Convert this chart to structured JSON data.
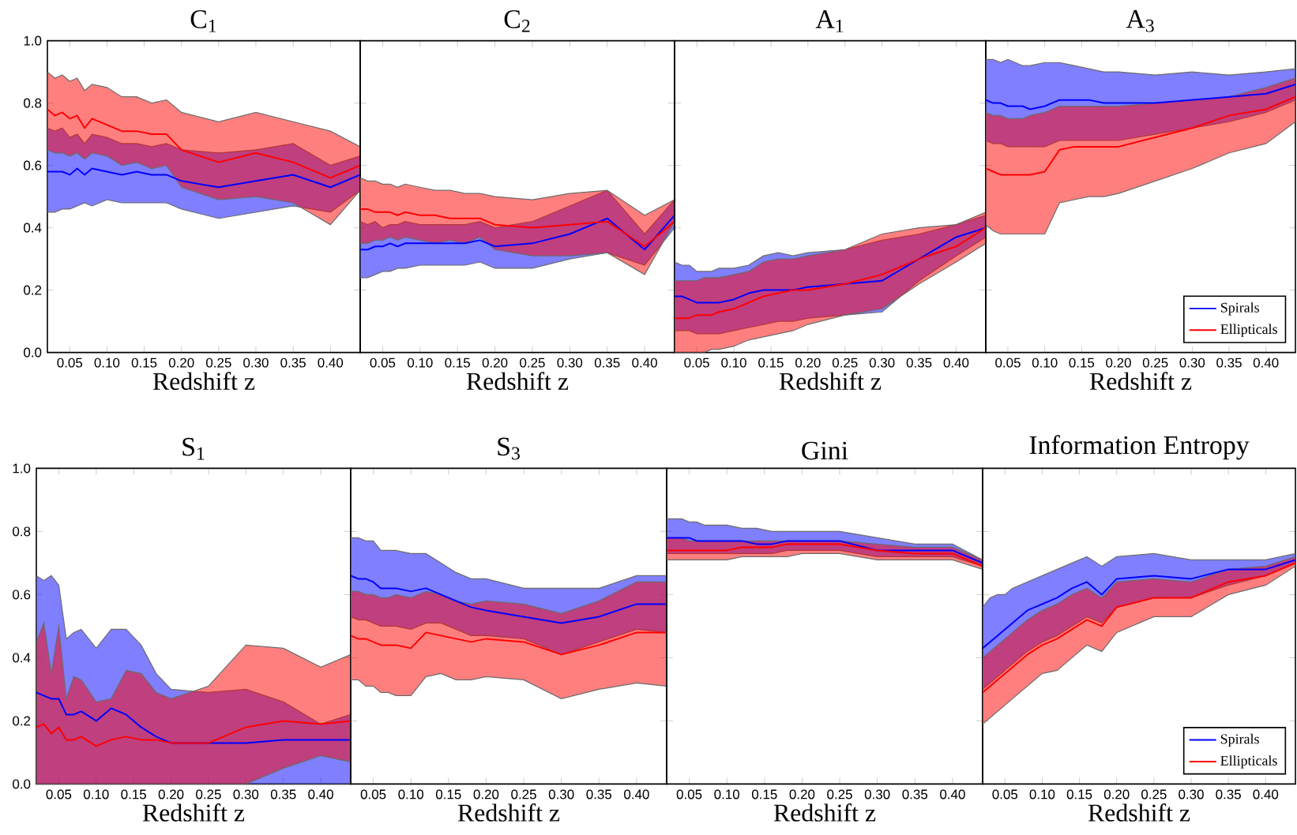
{
  "chart_data": [
    {
      "type": "line",
      "title": "C$_{1}$",
      "xlabel": "Redshift z",
      "x": [
        0.02,
        0.03,
        0.04,
        0.05,
        0.06,
        0.07,
        0.08,
        0.1,
        0.12,
        0.14,
        0.16,
        0.18,
        0.2,
        0.25,
        0.3,
        0.35,
        0.4,
        0.44
      ],
      "xlim": [
        0.02,
        0.44
      ],
      "xticks": [
        {
          "value": 0.05,
          "label": "0.05"
        },
        {
          "value": 0.1,
          "label": "0.10"
        },
        {
          "value": 0.15,
          "label": "0.15"
        },
        {
          "value": 0.2,
          "label": "0.20"
        },
        {
          "value": 0.25,
          "label": "0.25"
        },
        {
          "value": 0.3,
          "label": "0.30"
        },
        {
          "value": 0.35,
          "label": "0.35"
        },
        {
          "value": 0.4,
          "label": "0.40"
        }
      ],
      "ylim": [
        0,
        1
      ],
      "yticks": [
        {
          "value": 0,
          "label": "0.0"
        },
        {
          "value": 0.2,
          "label": "0.2"
        },
        {
          "value": 0.4,
          "label": "0.4"
        },
        {
          "value": 0.6,
          "label": "0.6"
        },
        {
          "value": 0.8,
          "label": "0.8"
        },
        {
          "value": 1,
          "label": "1.0"
        }
      ],
      "series": [
        {
          "color": "#0000ff",
          "values": [
            0.58,
            0.58,
            0.58,
            0.57,
            0.59,
            0.57,
            0.59,
            0.58,
            0.57,
            0.58,
            0.57,
            0.57,
            0.55,
            0.53,
            0.55,
            0.57,
            0.53,
            0.57
          ],
          "lower": [
            0.45,
            0.45,
            0.46,
            0.46,
            0.47,
            0.48,
            0.47,
            0.49,
            0.48,
            0.48,
            0.48,
            0.48,
            0.46,
            0.43,
            0.45,
            0.47,
            0.45,
            0.52
          ],
          "upper": [
            0.72,
            0.71,
            0.72,
            0.69,
            0.7,
            0.67,
            0.7,
            0.69,
            0.67,
            0.67,
            0.66,
            0.67,
            0.65,
            0.64,
            0.65,
            0.67,
            0.6,
            0.63
          ]
        },
        {
          "color": "#ff0000",
          "values": [
            0.78,
            0.76,
            0.77,
            0.75,
            0.76,
            0.72,
            0.75,
            0.73,
            0.71,
            0.71,
            0.7,
            0.7,
            0.65,
            0.61,
            0.64,
            0.61,
            0.56,
            0.6
          ],
          "lower": [
            0.65,
            0.64,
            0.64,
            0.63,
            0.64,
            0.62,
            0.64,
            0.63,
            0.6,
            0.61,
            0.59,
            0.6,
            0.53,
            0.49,
            0.5,
            0.48,
            0.41,
            0.52
          ],
          "upper": [
            0.9,
            0.88,
            0.89,
            0.87,
            0.88,
            0.84,
            0.86,
            0.85,
            0.82,
            0.82,
            0.8,
            0.81,
            0.77,
            0.74,
            0.77,
            0.74,
            0.71,
            0.66
          ]
        }
      ]
    },
    {
      "type": "line",
      "title": "C$_{2}$",
      "xlabel": "Redshift z",
      "x": [
        0.02,
        0.03,
        0.04,
        0.05,
        0.06,
        0.07,
        0.08,
        0.1,
        0.12,
        0.14,
        0.16,
        0.18,
        0.2,
        0.25,
        0.3,
        0.35,
        0.4,
        0.44
      ],
      "xlim": [
        0.02,
        0.44
      ],
      "xticks": [
        {
          "value": 0.05,
          "label": "0.05"
        },
        {
          "value": 0.1,
          "label": "0.10"
        },
        {
          "value": 0.15,
          "label": "0.15"
        },
        {
          "value": 0.2,
          "label": "0.20"
        },
        {
          "value": 0.25,
          "label": "0.25"
        },
        {
          "value": 0.3,
          "label": "0.30"
        },
        {
          "value": 0.35,
          "label": "0.35"
        },
        {
          "value": 0.4,
          "label": "0.40"
        }
      ],
      "ylim": [
        0,
        1
      ],
      "yticks": [
        {
          "value": 0,
          "label": null
        },
        {
          "value": 0.2,
          "label": null
        },
        {
          "value": 0.4,
          "label": null
        },
        {
          "value": 0.6,
          "label": null
        },
        {
          "value": 0.8,
          "label": null
        },
        {
          "value": 1,
          "label": null
        }
      ],
      "tick_labels": "x",
      "series": [
        {
          "color": "#0000ff",
          "values": [
            0.33,
            0.33,
            0.34,
            0.34,
            0.35,
            0.34,
            0.35,
            0.35,
            0.35,
            0.35,
            0.35,
            0.36,
            0.34,
            0.35,
            0.38,
            0.43,
            0.33,
            0.44
          ],
          "lower": [
            0.24,
            0.24,
            0.25,
            0.26,
            0.26,
            0.27,
            0.27,
            0.28,
            0.28,
            0.28,
            0.28,
            0.29,
            0.27,
            0.27,
            0.3,
            0.32,
            0.28,
            0.4
          ],
          "upper": [
            0.42,
            0.41,
            0.42,
            0.4,
            0.41,
            0.41,
            0.42,
            0.41,
            0.41,
            0.41,
            0.41,
            0.42,
            0.4,
            0.42,
            0.47,
            0.52,
            0.38,
            0.49
          ]
        },
        {
          "color": "#ff0000",
          "values": [
            0.46,
            0.46,
            0.45,
            0.45,
            0.45,
            0.44,
            0.45,
            0.44,
            0.44,
            0.43,
            0.43,
            0.43,
            0.41,
            0.4,
            0.41,
            0.42,
            0.34,
            0.42
          ],
          "lower": [
            0.35,
            0.35,
            0.36,
            0.36,
            0.37,
            0.36,
            0.37,
            0.36,
            0.35,
            0.36,
            0.35,
            0.37,
            0.33,
            0.31,
            0.31,
            0.32,
            0.25,
            0.42
          ],
          "upper": [
            0.56,
            0.55,
            0.55,
            0.54,
            0.54,
            0.53,
            0.54,
            0.53,
            0.52,
            0.52,
            0.51,
            0.51,
            0.5,
            0.49,
            0.51,
            0.52,
            0.44,
            0.49
          ]
        }
      ]
    },
    {
      "type": "line",
      "title": "A$_{1}$",
      "xlabel": "Redshift z",
      "x": [
        0.02,
        0.03,
        0.04,
        0.05,
        0.06,
        0.07,
        0.08,
        0.1,
        0.12,
        0.14,
        0.16,
        0.18,
        0.2,
        0.25,
        0.3,
        0.35,
        0.4,
        0.44
      ],
      "xlim": [
        0.02,
        0.44
      ],
      "xticks": [
        {
          "value": 0.05,
          "label": "0.05"
        },
        {
          "value": 0.1,
          "label": "0.10"
        },
        {
          "value": 0.15,
          "label": "0.15"
        },
        {
          "value": 0.2,
          "label": "0.20"
        },
        {
          "value": 0.25,
          "label": "0.25"
        },
        {
          "value": 0.3,
          "label": "0.30"
        },
        {
          "value": 0.35,
          "label": "0.35"
        },
        {
          "value": 0.4,
          "label": "0.40"
        }
      ],
      "ylim": [
        0,
        1
      ],
      "yticks": [
        {
          "value": 0,
          "label": null
        },
        {
          "value": 0.2,
          "label": null
        },
        {
          "value": 0.4,
          "label": null
        },
        {
          "value": 0.6,
          "label": null
        },
        {
          "value": 0.8,
          "label": null
        },
        {
          "value": 1,
          "label": null
        }
      ],
      "tick_labels": "x",
      "series": [
        {
          "color": "#0000ff",
          "values": [
            0.18,
            0.18,
            0.17,
            0.16,
            0.16,
            0.16,
            0.16,
            0.17,
            0.19,
            0.2,
            0.2,
            0.2,
            0.21,
            0.22,
            0.23,
            0.3,
            0.37,
            0.4
          ],
          "lower": [
            0.07,
            0.07,
            0.07,
            0.06,
            0.06,
            0.06,
            0.06,
            0.07,
            0.08,
            0.09,
            0.1,
            0.1,
            0.11,
            0.12,
            0.13,
            0.23,
            0.31,
            0.37
          ],
          "upper": [
            0.29,
            0.28,
            0.28,
            0.26,
            0.26,
            0.26,
            0.27,
            0.27,
            0.28,
            0.31,
            0.32,
            0.31,
            0.32,
            0.33,
            0.36,
            0.38,
            0.41,
            0.44
          ]
        },
        {
          "color": "#ff0000",
          "values": [
            0.11,
            0.11,
            0.11,
            0.12,
            0.12,
            0.12,
            0.13,
            0.14,
            0.16,
            0.18,
            0.19,
            0.2,
            0.2,
            0.22,
            0.25,
            0.3,
            0.34,
            0.4
          ],
          "lower": [
            0,
            0,
            0,
            0,
            0,
            0.01,
            0.01,
            0.02,
            0.04,
            0.05,
            0.06,
            0.07,
            0.09,
            0.12,
            0.14,
            0.22,
            0.29,
            0.35
          ],
          "upper": [
            0.23,
            0.23,
            0.23,
            0.23,
            0.24,
            0.24,
            0.24,
            0.25,
            0.26,
            0.29,
            0.3,
            0.3,
            0.31,
            0.33,
            0.38,
            0.4,
            0.41,
            0.45
          ]
        }
      ]
    },
    {
      "type": "line",
      "title": "A$_{3}$",
      "xlabel": "Redshift z",
      "x": [
        0.02,
        0.03,
        0.04,
        0.05,
        0.06,
        0.07,
        0.08,
        0.1,
        0.12,
        0.14,
        0.16,
        0.18,
        0.2,
        0.25,
        0.3,
        0.35,
        0.4,
        0.44
      ],
      "xlim": [
        0.02,
        0.44
      ],
      "xticks": [
        {
          "value": 0.05,
          "label": "0.05"
        },
        {
          "value": 0.1,
          "label": "0.10"
        },
        {
          "value": 0.15,
          "label": "0.15"
        },
        {
          "value": 0.2,
          "label": "0.20"
        },
        {
          "value": 0.25,
          "label": "0.25"
        },
        {
          "value": 0.3,
          "label": "0.30"
        },
        {
          "value": 0.35,
          "label": "0.35"
        },
        {
          "value": 0.4,
          "label": "0.40"
        }
      ],
      "ylim": [
        0,
        1
      ],
      "yticks": [
        {
          "value": 0,
          "label": null
        },
        {
          "value": 0.2,
          "label": null
        },
        {
          "value": 0.4,
          "label": null
        },
        {
          "value": 0.6,
          "label": null
        },
        {
          "value": 0.8,
          "label": null
        },
        {
          "value": 1,
          "label": null
        }
      ],
      "tick_labels": "x",
      "legend": "bottom right",
      "series": [
        {
          "name": "Spirals",
          "color": "#0000ff",
          "values": [
            0.81,
            0.8,
            0.8,
            0.79,
            0.79,
            0.79,
            0.78,
            0.79,
            0.81,
            0.81,
            0.81,
            0.8,
            0.8,
            0.8,
            0.81,
            0.82,
            0.83,
            0.86
          ],
          "lower": [
            0.68,
            0.67,
            0.67,
            0.66,
            0.66,
            0.66,
            0.66,
            0.66,
            0.68,
            0.68,
            0.68,
            0.68,
            0.68,
            0.7,
            0.72,
            0.74,
            0.77,
            0.81
          ],
          "upper": [
            0.94,
            0.94,
            0.93,
            0.94,
            0.93,
            0.92,
            0.92,
            0.93,
            0.93,
            0.92,
            0.91,
            0.9,
            0.9,
            0.89,
            0.9,
            0.89,
            0.9,
            0.91
          ]
        },
        {
          "name": "Ellipticals",
          "color": "#ff0000",
          "values": [
            0.59,
            0.58,
            0.57,
            0.57,
            0.57,
            0.57,
            0.57,
            0.58,
            0.65,
            0.66,
            0.66,
            0.66,
            0.66,
            0.69,
            0.72,
            0.76,
            0.78,
            0.82
          ],
          "lower": [
            0.41,
            0.39,
            0.38,
            0.38,
            0.38,
            0.38,
            0.38,
            0.38,
            0.48,
            0.49,
            0.5,
            0.5,
            0.51,
            0.55,
            0.59,
            0.64,
            0.67,
            0.74
          ],
          "upper": [
            0.77,
            0.76,
            0.76,
            0.75,
            0.75,
            0.75,
            0.76,
            0.77,
            0.79,
            0.79,
            0.79,
            0.79,
            0.79,
            0.8,
            0.81,
            0.82,
            0.85,
            0.88
          ]
        }
      ]
    },
    {
      "type": "line",
      "title": "S$_{1}$",
      "xlabel": "Redshift z",
      "x": [
        0.02,
        0.03,
        0.04,
        0.05,
        0.06,
        0.07,
        0.08,
        0.1,
        0.12,
        0.14,
        0.16,
        0.18,
        0.2,
        0.25,
        0.3,
        0.35,
        0.4,
        0.44
      ],
      "xlim": [
        0.02,
        0.44
      ],
      "xticks": [
        {
          "value": 0.05,
          "label": "0.05"
        },
        {
          "value": 0.1,
          "label": "0.10"
        },
        {
          "value": 0.15,
          "label": "0.15"
        },
        {
          "value": 0.2,
          "label": "0.20"
        },
        {
          "value": 0.25,
          "label": "0.25"
        },
        {
          "value": 0.3,
          "label": "0.30"
        },
        {
          "value": 0.35,
          "label": "0.35"
        },
        {
          "value": 0.4,
          "label": "0.40"
        }
      ],
      "ylim": [
        0,
        1
      ],
      "yticks": [
        {
          "value": 0,
          "label": "0.0"
        },
        {
          "value": 0.2,
          "label": "0.2"
        },
        {
          "value": 0.4,
          "label": "0.4"
        },
        {
          "value": 0.6,
          "label": "0.6"
        },
        {
          "value": 0.8,
          "label": "0.8"
        },
        {
          "value": 1,
          "label": "1.0"
        }
      ],
      "series": [
        {
          "color": "#0000ff",
          "values": [
            0.29,
            0.28,
            0.27,
            0.27,
            0.22,
            0.22,
            0.23,
            0.2,
            0.24,
            0.22,
            0.18,
            0.15,
            0.13,
            0.13,
            0.13,
            0.14,
            0.14,
            0.14
          ],
          "lower": [
            0,
            0,
            0,
            0,
            0,
            0,
            0,
            0,
            0,
            0,
            0,
            0,
            0,
            0,
            0,
            0,
            0,
            0
          ],
          "upper": [
            0.66,
            0.645,
            0.66,
            0.63,
            0.46,
            0.48,
            0.49,
            0.43,
            0.49,
            0.49,
            0.44,
            0.35,
            0.3,
            0.29,
            0.3,
            0.26,
            0.19,
            0.22
          ]
        },
        {
          "color": "#ff0000",
          "values": [
            0.18,
            0.19,
            0.16,
            0.18,
            0.14,
            0.14,
            0.15,
            0.12,
            0.14,
            0.15,
            0.14,
            0.14,
            0.13,
            0.13,
            0.18,
            0.2,
            0.19,
            0.2
          ],
          "lower": [
            0,
            0,
            0,
            0,
            0,
            0,
            0,
            0,
            0,
            0,
            0,
            0,
            0,
            0,
            0,
            0.05,
            0.09,
            0.07
          ],
          "upper": [
            0.45,
            0.51,
            0.35,
            0.5,
            0.27,
            0.34,
            0.33,
            0.26,
            0.27,
            0.36,
            0.35,
            0.29,
            0.27,
            0.31,
            0.44,
            0.43,
            0.37,
            0.41
          ]
        }
      ]
    },
    {
      "type": "line",
      "title": "S$_{3}$",
      "xlabel": "Redshift z",
      "x": [
        0.02,
        0.03,
        0.04,
        0.05,
        0.06,
        0.07,
        0.08,
        0.1,
        0.12,
        0.14,
        0.16,
        0.18,
        0.2,
        0.25,
        0.3,
        0.35,
        0.4,
        0.44
      ],
      "xlim": [
        0.02,
        0.44
      ],
      "xticks": [
        {
          "value": 0.05,
          "label": "0.05"
        },
        {
          "value": 0.1,
          "label": "0.10"
        },
        {
          "value": 0.15,
          "label": "0.15"
        },
        {
          "value": 0.2,
          "label": "0.20"
        },
        {
          "value": 0.25,
          "label": "0.25"
        },
        {
          "value": 0.3,
          "label": "0.30"
        },
        {
          "value": 0.35,
          "label": "0.35"
        },
        {
          "value": 0.4,
          "label": "0.40"
        }
      ],
      "ylim": [
        0,
        1
      ],
      "yticks": [
        {
          "value": 0,
          "label": null
        },
        {
          "value": 0.2,
          "label": null
        },
        {
          "value": 0.4,
          "label": null
        },
        {
          "value": 0.6,
          "label": null
        },
        {
          "value": 0.8,
          "label": null
        },
        {
          "value": 1,
          "label": null
        }
      ],
      "tick_labels": "x",
      "series": [
        {
          "color": "#0000ff",
          "values": [
            0.66,
            0.65,
            0.65,
            0.64,
            0.62,
            0.62,
            0.62,
            0.61,
            0.62,
            0.6,
            0.58,
            0.56,
            0.55,
            0.53,
            0.51,
            0.53,
            0.57,
            0.57
          ],
          "lower": [
            0.53,
            0.52,
            0.52,
            0.51,
            0.5,
            0.5,
            0.5,
            0.49,
            0.51,
            0.51,
            0.49,
            0.47,
            0.47,
            0.46,
            0.41,
            0.45,
            0.49,
            0.48
          ],
          "upper": [
            0.78,
            0.78,
            0.77,
            0.77,
            0.74,
            0.74,
            0.74,
            0.73,
            0.73,
            0.7,
            0.67,
            0.65,
            0.65,
            0.62,
            0.62,
            0.62,
            0.66,
            0.66
          ]
        },
        {
          "color": "#ff0000",
          "values": [
            0.47,
            0.46,
            0.46,
            0.45,
            0.44,
            0.44,
            0.44,
            0.43,
            0.48,
            0.47,
            0.46,
            0.45,
            0.46,
            0.45,
            0.41,
            0.44,
            0.48,
            0.48
          ],
          "lower": [
            0.33,
            0.33,
            0.31,
            0.31,
            0.29,
            0.29,
            0.28,
            0.28,
            0.34,
            0.35,
            0.33,
            0.33,
            0.34,
            0.33,
            0.27,
            0.3,
            0.32,
            0.31
          ],
          "upper": [
            0.61,
            0.61,
            0.6,
            0.6,
            0.59,
            0.59,
            0.6,
            0.59,
            0.61,
            0.6,
            0.58,
            0.57,
            0.58,
            0.57,
            0.54,
            0.58,
            0.64,
            0.64
          ]
        }
      ]
    },
    {
      "type": "line",
      "title": "Gini",
      "xlabel": "Redshift z",
      "x": [
        0.02,
        0.03,
        0.04,
        0.05,
        0.06,
        0.07,
        0.08,
        0.1,
        0.12,
        0.14,
        0.16,
        0.18,
        0.2,
        0.25,
        0.3,
        0.35,
        0.4,
        0.44
      ],
      "xlim": [
        0.02,
        0.44
      ],
      "xticks": [
        {
          "value": 0.05,
          "label": "0.05"
        },
        {
          "value": 0.1,
          "label": "0.10"
        },
        {
          "value": 0.15,
          "label": "0.15"
        },
        {
          "value": 0.2,
          "label": "0.20"
        },
        {
          "value": 0.25,
          "label": "0.25"
        },
        {
          "value": 0.3,
          "label": "0.30"
        },
        {
          "value": 0.35,
          "label": "0.35"
        },
        {
          "value": 0.4,
          "label": "0.40"
        }
      ],
      "ylim": [
        0,
        1
      ],
      "yticks": [
        {
          "value": 0,
          "label": null
        },
        {
          "value": 0.2,
          "label": null
        },
        {
          "value": 0.4,
          "label": null
        },
        {
          "value": 0.6,
          "label": null
        },
        {
          "value": 0.8,
          "label": null
        },
        {
          "value": 1,
          "label": null
        }
      ],
      "tick_labels": "x",
      "series": [
        {
          "color": "#0000ff",
          "values": [
            0.78,
            0.78,
            0.78,
            0.78,
            0.77,
            0.77,
            0.77,
            0.77,
            0.77,
            0.76,
            0.76,
            0.77,
            0.77,
            0.77,
            0.74,
            0.74,
            0.74,
            0.7
          ],
          "lower": [
            0.73,
            0.73,
            0.73,
            0.73,
            0.73,
            0.73,
            0.73,
            0.73,
            0.73,
            0.73,
            0.73,
            0.74,
            0.74,
            0.74,
            0.72,
            0.72,
            0.72,
            0.69
          ],
          "upper": [
            0.84,
            0.84,
            0.84,
            0.83,
            0.83,
            0.82,
            0.82,
            0.82,
            0.81,
            0.81,
            0.8,
            0.8,
            0.8,
            0.8,
            0.78,
            0.76,
            0.76,
            0.71
          ]
        },
        {
          "color": "#ff0000",
          "values": [
            0.74,
            0.74,
            0.74,
            0.74,
            0.74,
            0.74,
            0.74,
            0.74,
            0.75,
            0.75,
            0.75,
            0.76,
            0.76,
            0.76,
            0.74,
            0.73,
            0.73,
            0.69
          ],
          "lower": [
            0.71,
            0.71,
            0.71,
            0.71,
            0.71,
            0.71,
            0.71,
            0.71,
            0.72,
            0.72,
            0.72,
            0.72,
            0.73,
            0.73,
            0.71,
            0.71,
            0.71,
            0.68
          ],
          "upper": [
            0.78,
            0.78,
            0.78,
            0.77,
            0.77,
            0.77,
            0.77,
            0.77,
            0.77,
            0.77,
            0.77,
            0.77,
            0.77,
            0.77,
            0.76,
            0.75,
            0.75,
            0.71
          ]
        }
      ]
    },
    {
      "type": "line",
      "title": "Information Entropy",
      "xlabel": "Redshift z",
      "x": [
        0.02,
        0.03,
        0.04,
        0.05,
        0.06,
        0.07,
        0.08,
        0.1,
        0.12,
        0.14,
        0.16,
        0.18,
        0.2,
        0.25,
        0.3,
        0.35,
        0.4,
        0.44
      ],
      "xlim": [
        0.02,
        0.44
      ],
      "xticks": [
        {
          "value": 0.05,
          "label": "0.05"
        },
        {
          "value": 0.1,
          "label": "0.10"
        },
        {
          "value": 0.15,
          "label": "0.15"
        },
        {
          "value": 0.2,
          "label": "0.20"
        },
        {
          "value": 0.25,
          "label": "0.25"
        },
        {
          "value": 0.3,
          "label": "0.30"
        },
        {
          "value": 0.35,
          "label": "0.35"
        },
        {
          "value": 0.4,
          "label": "0.40"
        }
      ],
      "ylim": [
        0,
        1
      ],
      "yticks": [
        {
          "value": 0,
          "label": null
        },
        {
          "value": 0.2,
          "label": null
        },
        {
          "value": 0.4,
          "label": null
        },
        {
          "value": 0.6,
          "label": null
        },
        {
          "value": 0.8,
          "label": null
        },
        {
          "value": 1,
          "label": null
        }
      ],
      "tick_labels": "x",
      "legend": "bottom right",
      "series": [
        {
          "name": "Spirals",
          "color": "#0000ff",
          "values": [
            0.43,
            0.45,
            0.47,
            0.49,
            0.51,
            0.53,
            0.55,
            0.57,
            0.59,
            0.62,
            0.64,
            0.6,
            0.65,
            0.66,
            0.65,
            0.68,
            0.68,
            0.71
          ],
          "lower": [
            0.3,
            0.32,
            0.34,
            0.36,
            0.38,
            0.4,
            0.42,
            0.45,
            0.47,
            0.5,
            0.53,
            0.51,
            0.56,
            0.59,
            0.59,
            0.63,
            0.66,
            0.7
          ],
          "upper": [
            0.56,
            0.59,
            0.6,
            0.6,
            0.62,
            0.63,
            0.64,
            0.66,
            0.68,
            0.7,
            0.72,
            0.69,
            0.72,
            0.73,
            0.71,
            0.71,
            0.71,
            0.73
          ]
        },
        {
          "name": "Ellipticals",
          "color": "#ff0000",
          "values": [
            0.29,
            0.31,
            0.33,
            0.35,
            0.37,
            0.39,
            0.41,
            0.44,
            0.46,
            0.49,
            0.52,
            0.5,
            0.56,
            0.59,
            0.59,
            0.64,
            0.66,
            0.7
          ],
          "lower": [
            0.19,
            0.21,
            0.23,
            0.25,
            0.27,
            0.29,
            0.31,
            0.35,
            0.36,
            0.4,
            0.44,
            0.42,
            0.48,
            0.53,
            0.53,
            0.6,
            0.63,
            0.69
          ],
          "upper": [
            0.4,
            0.42,
            0.44,
            0.46,
            0.48,
            0.5,
            0.52,
            0.55,
            0.57,
            0.6,
            0.62,
            0.59,
            0.64,
            0.65,
            0.64,
            0.68,
            0.69,
            0.72
          ]
        }
      ]
    }
  ]
}
